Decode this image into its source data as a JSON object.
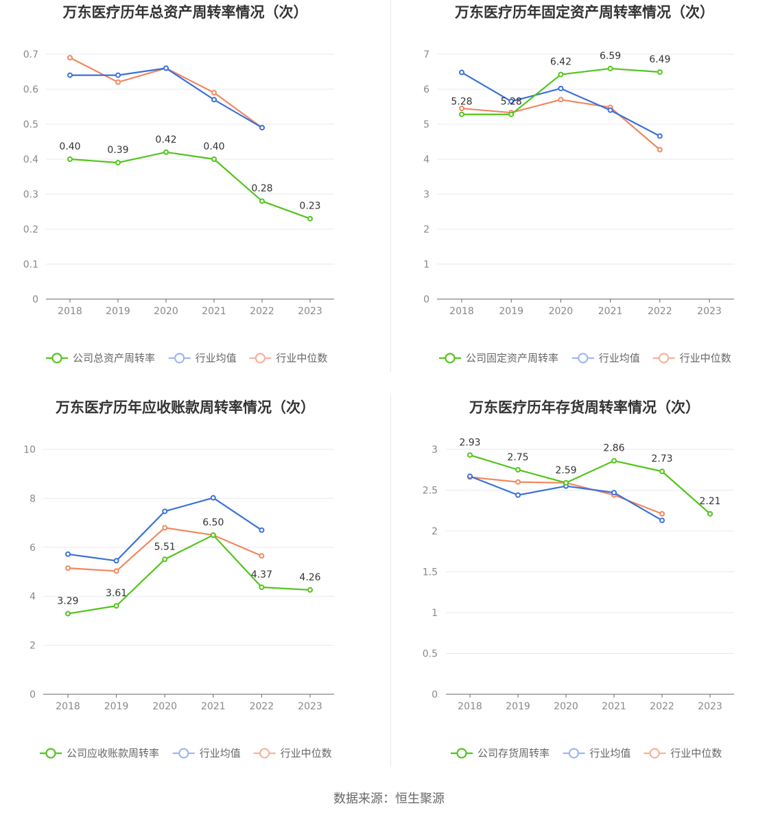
{
  "source_text": "数据来源：恒生聚源",
  "colors": {
    "company": "#52c41a",
    "avg": "#3a6fdc",
    "median": "#f0875f",
    "avg_legend": "#9db8ee",
    "median_legend": "#f5b29a"
  },
  "chart_data": [
    {
      "type": "line",
      "title": "万东医疗历年总资产周转率情况（次）",
      "categories": [
        "2018",
        "2019",
        "2020",
        "2021",
        "2022",
        "2023"
      ],
      "ylim": [
        0,
        0.7
      ],
      "yticks": [
        "0",
        "0.1",
        "0.2",
        "0.3",
        "0.4",
        "0.5",
        "0.6",
        "0.7"
      ],
      "ytick_values": [
        0,
        0.1,
        0.2,
        0.3,
        0.4,
        0.5,
        0.6,
        0.7
      ],
      "series": [
        {
          "name": "公司总资产周转率",
          "key": "company",
          "values": [
            0.4,
            0.39,
            0.42,
            0.4,
            0.28,
            0.23
          ],
          "labels": [
            "0.40",
            "0.39",
            "0.42",
            "0.40",
            "0.28",
            "0.23"
          ]
        },
        {
          "name": "行业均值",
          "key": "avg",
          "values": [
            0.64,
            0.64,
            0.66,
            0.57,
            0.49,
            null
          ]
        },
        {
          "name": "行业中位数",
          "key": "median",
          "values": [
            0.69,
            0.62,
            0.66,
            0.59,
            0.49,
            null
          ]
        }
      ]
    },
    {
      "type": "line",
      "title": "万东医疗历年固定资产周转率情况（次）",
      "categories": [
        "2018",
        "2019",
        "2020",
        "2021",
        "2022",
        "2023"
      ],
      "ylim": [
        0,
        7
      ],
      "yticks": [
        "0",
        "1",
        "2",
        "3",
        "4",
        "5",
        "6",
        "7"
      ],
      "ytick_values": [
        0,
        1,
        2,
        3,
        4,
        5,
        6,
        7
      ],
      "series": [
        {
          "name": "公司固定资产周转率",
          "key": "company",
          "values": [
            5.28,
            5.28,
            6.42,
            6.59,
            6.49,
            null
          ],
          "labels": [
            "5.28",
            "5.28",
            "6.42",
            "6.59",
            "6.49",
            null
          ]
        },
        {
          "name": "行业均值",
          "key": "avg",
          "values": [
            6.48,
            5.65,
            6.02,
            5.4,
            4.66,
            null
          ]
        },
        {
          "name": "行业中位数",
          "key": "median",
          "values": [
            5.45,
            5.33,
            5.7,
            5.48,
            4.27,
            null
          ]
        }
      ]
    },
    {
      "type": "line",
      "title": "万东医疗历年应收账款周转率情况（次）",
      "categories": [
        "2018",
        "2019",
        "2020",
        "2021",
        "2022",
        "2023"
      ],
      "ylim": [
        0,
        10
      ],
      "yticks": [
        "0",
        "2",
        "4",
        "6",
        "8",
        "10"
      ],
      "ytick_values": [
        0,
        2,
        4,
        6,
        8,
        10
      ],
      "series": [
        {
          "name": "公司应收账款周转率",
          "key": "company",
          "values": [
            3.29,
            3.61,
            5.51,
            6.5,
            4.37,
            4.26
          ],
          "labels": [
            "3.29",
            "3.61",
            "5.51",
            "6.50",
            "4.37",
            "4.26"
          ]
        },
        {
          "name": "行业均值",
          "key": "avg",
          "values": [
            5.72,
            5.45,
            7.47,
            8.02,
            6.7,
            null
          ]
        },
        {
          "name": "行业中位数",
          "key": "median",
          "values": [
            5.15,
            5.03,
            6.8,
            6.5,
            5.65,
            null
          ]
        }
      ]
    },
    {
      "type": "line",
      "title": "万东医疗历年存货周转率情况（次）",
      "categories": [
        "2018",
        "2019",
        "2020",
        "2021",
        "2022",
        "2023"
      ],
      "ylim": [
        0,
        3
      ],
      "yticks": [
        "0",
        "0.5",
        "1",
        "1.5",
        "2",
        "2.5",
        "3"
      ],
      "ytick_values": [
        0,
        0.5,
        1,
        1.5,
        2,
        2.5,
        3
      ],
      "series": [
        {
          "name": "公司存货周转率",
          "key": "company",
          "values": [
            2.93,
            2.75,
            2.59,
            2.86,
            2.73,
            2.21
          ],
          "labels": [
            "2.93",
            "2.75",
            "2.59",
            "2.86",
            "2.73",
            "2.21"
          ]
        },
        {
          "name": "行业均值",
          "key": "avg",
          "values": [
            2.67,
            2.44,
            2.55,
            2.47,
            2.13,
            null
          ]
        },
        {
          "name": "行业中位数",
          "key": "median",
          "values": [
            2.66,
            2.6,
            2.59,
            2.44,
            2.21,
            null
          ]
        }
      ]
    }
  ]
}
